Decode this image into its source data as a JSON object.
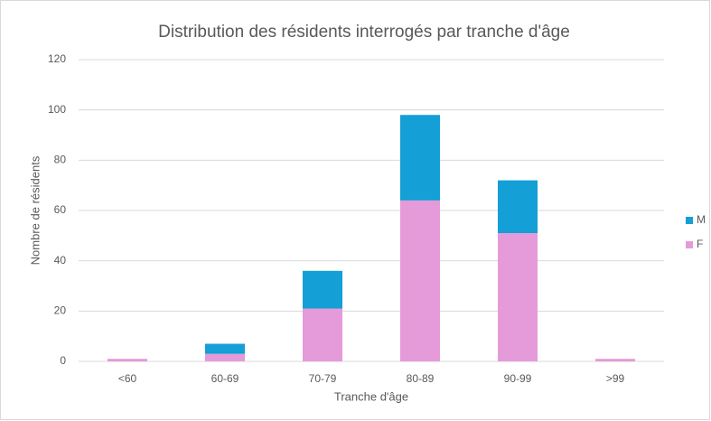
{
  "chart_data": {
    "type": "stacked_bar",
    "title": "Distribution des résidents interrogés par tranche d'âge",
    "x_label": "Tranche d'âge",
    "y_label": "Nombre de résidents",
    "categories": [
      "<60",
      "60-69",
      "70-79",
      "80-89",
      "90-99",
      ">99"
    ],
    "series": [
      {
        "name": "F",
        "color": "#e59ad9",
        "values": [
          1,
          3,
          21,
          64,
          51,
          1
        ]
      },
      {
        "name": "M",
        "color": "#149fd6",
        "values": [
          0,
          4,
          15,
          34,
          21,
          0
        ]
      }
    ],
    "ylim": [
      0,
      120
    ],
    "yticks": [
      0,
      20,
      40,
      60,
      80,
      100,
      120
    ],
    "grid": true,
    "legend": "right"
  }
}
